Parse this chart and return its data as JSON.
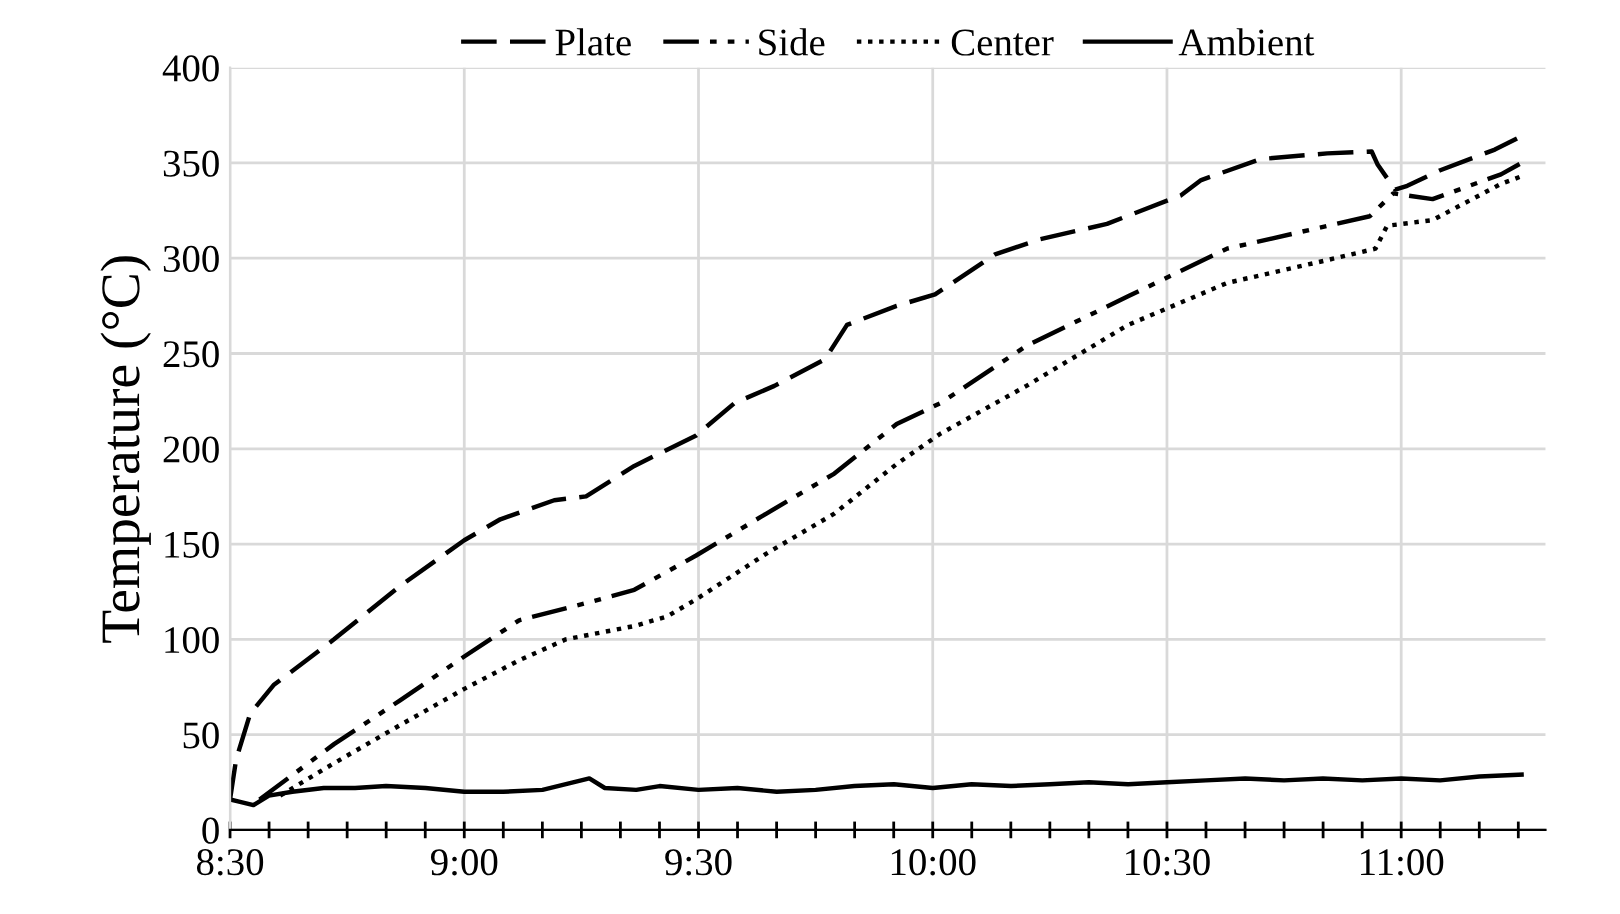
{
  "chart_data": {
    "type": "line",
    "ylabel": "Temperature (°C)",
    "xlim": [
      8.5,
      11.308
    ],
    "ylim": [
      0,
      400
    ],
    "yticks": [
      0,
      50,
      100,
      150,
      200,
      250,
      300,
      350,
      400
    ],
    "xticks": [
      {
        "value": 8.5,
        "label": "8:30"
      },
      {
        "value": 8.5833,
        "label": null
      },
      {
        "value": 8.6667,
        "label": null
      },
      {
        "value": 8.75,
        "label": null
      },
      {
        "value": 8.8333,
        "label": null
      },
      {
        "value": 8.9167,
        "label": null
      },
      {
        "value": 9.0,
        "label": "9:00"
      },
      {
        "value": 9.0833,
        "label": null
      },
      {
        "value": 9.1667,
        "label": null
      },
      {
        "value": 9.25,
        "label": null
      },
      {
        "value": 9.3333,
        "label": null
      },
      {
        "value": 9.4167,
        "label": null
      },
      {
        "value": 9.5,
        "label": "9:30"
      },
      {
        "value": 9.5833,
        "label": null
      },
      {
        "value": 9.6667,
        "label": null
      },
      {
        "value": 9.75,
        "label": null
      },
      {
        "value": 9.8333,
        "label": null
      },
      {
        "value": 9.9167,
        "label": null
      },
      {
        "value": 10.0,
        "label": "10:00"
      },
      {
        "value": 10.0833,
        "label": null
      },
      {
        "value": 10.1667,
        "label": null
      },
      {
        "value": 10.25,
        "label": null
      },
      {
        "value": 10.3333,
        "label": null
      },
      {
        "value": 10.4167,
        "label": null
      },
      {
        "value": 10.5,
        "label": "10:30"
      },
      {
        "value": 10.5833,
        "label": null
      },
      {
        "value": 10.6667,
        "label": null
      },
      {
        "value": 10.75,
        "label": null
      },
      {
        "value": 10.8333,
        "label": null
      },
      {
        "value": 10.9167,
        "label": null
      },
      {
        "value": 11.0,
        "label": "11:00"
      },
      {
        "value": 11.0833,
        "label": null
      },
      {
        "value": 11.1667,
        "label": null
      },
      {
        "value": 11.25,
        "label": null
      }
    ],
    "grid": true,
    "legend": "top",
    "marker": "none",
    "series": [
      {
        "name": "Plate",
        "color": "#000000",
        "line_style": "dashed",
        "x": [
          8.5,
          8.513,
          8.543,
          8.593,
          8.722,
          8.863,
          9.0,
          9.077,
          9.192,
          9.26,
          9.363,
          9.495,
          9.577,
          9.662,
          9.77,
          9.817,
          9.923,
          10.005,
          10.133,
          10.23,
          10.372,
          10.53,
          10.573,
          10.7,
          10.842,
          10.937,
          10.95,
          10.987,
          11.013,
          11.082,
          11.2,
          11.257
        ],
        "values": [
          16,
          37,
          61,
          76,
          100,
          128,
          152,
          163,
          173,
          175,
          191,
          207,
          224,
          233,
          247,
          265,
          275,
          281,
          302,
          310,
          318,
          333,
          341,
          352,
          355,
          356,
          349,
          336,
          338,
          346,
          357,
          364
        ]
      },
      {
        "name": "Side",
        "color": "#000000",
        "line_style": "dashdotdot",
        "x": [
          8.563,
          8.722,
          8.863,
          9.0,
          9.117,
          9.26,
          9.363,
          9.495,
          9.645,
          9.79,
          9.923,
          10.017,
          10.2,
          10.417,
          10.628,
          10.933,
          10.983,
          11.067,
          11.213,
          11.257
        ],
        "values": [
          16,
          45,
          68,
          91,
          110,
          119,
          126,
          144,
          166,
          187,
          213,
          224,
          254,
          280,
          305,
          322,
          334,
          331,
          344,
          350
        ]
      },
      {
        "name": "Center",
        "color": "#000000",
        "line_style": "dotted",
        "x": [
          8.607,
          8.722,
          8.863,
          9.0,
          9.117,
          9.217,
          9.363,
          9.433,
          9.495,
          9.645,
          9.79,
          9.923,
          10.017,
          10.2,
          10.417,
          10.628,
          10.842,
          10.945,
          10.97,
          11.067,
          11.213,
          11.257
        ],
        "values": [
          18,
          35,
          55,
          74,
          89,
          100,
          107,
          112,
          121,
          145,
          166,
          192,
          208,
          233,
          265,
          287,
          299,
          305,
          317,
          320,
          339,
          343
        ]
      },
      {
        "name": "Ambient",
        "color": "#000000",
        "line_style": "solid",
        "x": [
          8.5,
          8.517,
          8.55,
          8.583,
          8.633,
          8.7,
          8.767,
          8.833,
          8.917,
          9.0,
          9.083,
          9.167,
          9.267,
          9.3,
          9.367,
          9.417,
          9.5,
          9.583,
          9.667,
          9.75,
          9.833,
          9.917,
          10.0,
          10.083,
          10.167,
          10.25,
          10.333,
          10.417,
          10.5,
          10.583,
          10.667,
          10.75,
          10.833,
          10.917,
          11.0,
          11.083,
          11.167,
          11.257
        ],
        "values": [
          16,
          15,
          13,
          18,
          20,
          22,
          22,
          23,
          22,
          20,
          20,
          21,
          27,
          22,
          21,
          23,
          21,
          22,
          20,
          21,
          23,
          24,
          22,
          24,
          23,
          24,
          25,
          24,
          25,
          26,
          27,
          26,
          27,
          26,
          27,
          26,
          28,
          29
        ]
      }
    ]
  }
}
